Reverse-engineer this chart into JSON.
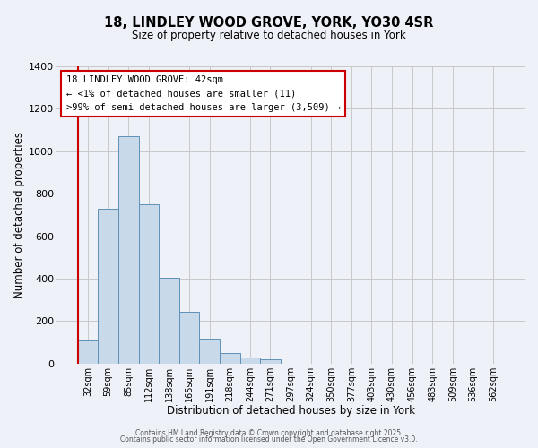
{
  "title": "18, LINDLEY WOOD GROVE, YORK, YO30 4SR",
  "subtitle": "Size of property relative to detached houses in York",
  "xlabel": "Distribution of detached houses by size in York",
  "ylabel": "Number of detached properties",
  "categories": [
    "32sqm",
    "59sqm",
    "85sqm",
    "112sqm",
    "138sqm",
    "165sqm",
    "191sqm",
    "218sqm",
    "244sqm",
    "271sqm",
    "297sqm",
    "324sqm",
    "350sqm",
    "377sqm",
    "403sqm",
    "430sqm",
    "456sqm",
    "483sqm",
    "509sqm",
    "536sqm",
    "562sqm"
  ],
  "values": [
    110,
    730,
    1070,
    750,
    405,
    245,
    115,
    50,
    27,
    20,
    0,
    0,
    0,
    0,
    0,
    0,
    0,
    0,
    0,
    0,
    0
  ],
  "bar_color": "#c8daea",
  "bar_edge_color": "#6090b8",
  "ylim": [
    0,
    1400
  ],
  "yticks": [
    0,
    200,
    400,
    600,
    800,
    1000,
    1200,
    1400
  ],
  "grid_color": "#c8c8c8",
  "background_color": "#eef2f8",
  "annotation_line1": "18 LINDLEY WOOD GROVE: 42sqm",
  "annotation_line2": "← <1% of detached houses are smaller (11)",
  "annotation_line3": ">99% of semi-detached houses are larger (3,509) →",
  "annotation_box_color": "#ffffff",
  "annotation_border_color": "#cc0000",
  "marker_line_color": "#cc0000",
  "footer1": "Contains HM Land Registry data © Crown copyright and database right 2025.",
  "footer2": "Contains public sector information licensed under the Open Government Licence v3.0."
}
